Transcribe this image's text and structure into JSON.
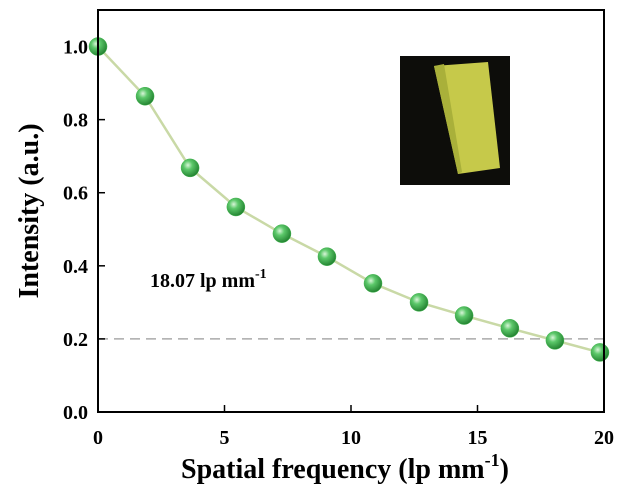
{
  "chart_data": {
    "type": "line",
    "ylabel": "Intensity (a.u.)",
    "xlabel": {
      "text": "Spatial frequency (lp mm",
      "sup": "-1",
      "tail": ")"
    },
    "annotation": {
      "text": "18.07 lp mm",
      "sup": "-1"
    },
    "x": [
      0,
      1.86,
      3.64,
      5.45,
      7.27,
      9.05,
      10.87,
      12.69,
      14.47,
      16.28,
      18.06,
      19.84
    ],
    "series": [
      {
        "color": "#3fb44c",
        "line_color": "#c9d9a6",
        "values": [
          1.0,
          0.864,
          0.668,
          0.561,
          0.488,
          0.425,
          0.352,
          0.3,
          0.264,
          0.229,
          0.196,
          0.163
        ]
      }
    ],
    "hline": 0.2,
    "xlim": [
      0,
      20
    ],
    "ylim": [
      0,
      1.1
    ],
    "xticks": [
      0,
      5,
      10,
      15,
      20
    ],
    "yticks": [
      {
        "value": 0,
        "label": "0.0"
      },
      {
        "value": 0.2,
        "label": "0.2"
      },
      {
        "value": 0.4,
        "label": "0.4"
      },
      {
        "value": 0.6,
        "label": "0.6"
      },
      {
        "value": 0.8,
        "label": "0.8"
      },
      {
        "value": 1.0,
        "label": "1.0"
      }
    ]
  }
}
